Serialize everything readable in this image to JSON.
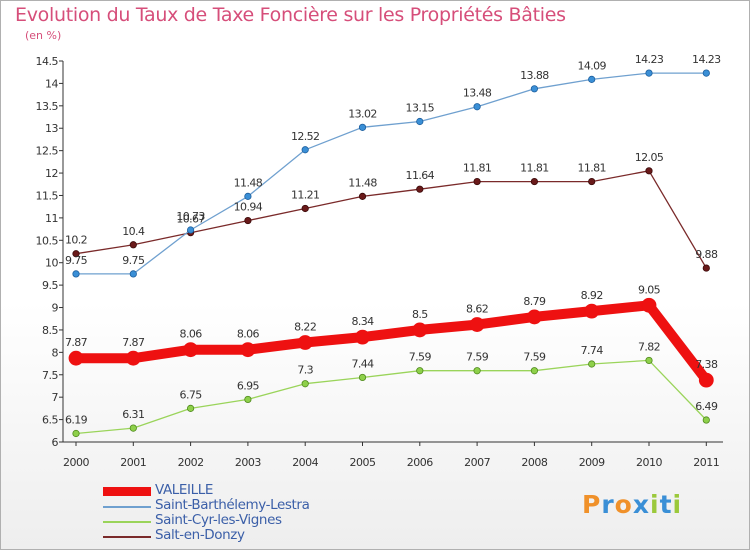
{
  "title": "Evolution du Taux de Taxe Foncière sur les Propriétés Bâties",
  "unit": "(en %)",
  "brand": {
    "letters": [
      "P",
      "r",
      "o",
      "x",
      "i",
      "t",
      "i"
    ],
    "colors": [
      "#f0912a",
      "#3a8fd6",
      "#f0912a",
      "#3a8fd6",
      "#9bc93b",
      "#3a8fd6",
      "#9bc93b"
    ]
  },
  "chart_data": {
    "type": "line",
    "x": [
      "2000",
      "2001",
      "2002",
      "2003",
      "2004",
      "2005",
      "2006",
      "2007",
      "2008",
      "2009",
      "2010",
      "2011"
    ],
    "y_ticks": [
      "6",
      "6.5",
      "7",
      "7.5",
      "8",
      "8.5",
      "9",
      "9.5",
      "10",
      "10.5",
      "11",
      "11.5",
      "12",
      "12.5",
      "13",
      "13.5",
      "14",
      "14.5"
    ],
    "ylim": [
      6,
      14.5
    ],
    "grid": false,
    "legend_position": "bottom-left",
    "series": [
      {
        "name": "VALEILLE",
        "color": "#ee1111",
        "values": [
          7.87,
          7.87,
          8.06,
          8.06,
          8.22,
          8.34,
          8.5,
          8.62,
          8.79,
          8.92,
          9.05,
          7.38
        ],
        "labels": [
          "7.87",
          "7.87",
          "8.06",
          "8.06",
          "8.22",
          "8.34",
          "8.5",
          "8.62",
          "8.79",
          "8.92",
          "9.05",
          "7.38"
        ]
      },
      {
        "name": "Saint-Barthélemy-Lestra",
        "color": "#6fa0cf",
        "values": [
          9.75,
          9.75,
          10.73,
          11.48,
          12.52,
          13.02,
          13.15,
          13.48,
          13.88,
          14.09,
          14.23,
          14.23
        ],
        "labels": [
          "9.75",
          "9.75",
          "10.73",
          "11.48",
          "12.52",
          "13.02",
          "13.15",
          "13.48",
          "13.88",
          "14.09",
          "14.23",
          "14.23"
        ]
      },
      {
        "name": "Saint-Cyr-les-Vignes",
        "color": "#9ad45a",
        "values": [
          6.19,
          6.31,
          6.75,
          6.95,
          7.3,
          7.44,
          7.59,
          7.59,
          7.59,
          7.74,
          7.82,
          6.49
        ],
        "labels": [
          "6.19",
          "6.31",
          "6.75",
          "6.95",
          "7.3",
          "7.44",
          "7.59",
          "7.59",
          "7.59",
          "7.74",
          "7.82",
          "6.49"
        ]
      },
      {
        "name": "Salt-en-Donzy",
        "color": "#7a2a2a",
        "values": [
          10.2,
          10.4,
          10.67,
          10.94,
          11.21,
          11.48,
          11.64,
          11.81,
          11.81,
          11.81,
          12.05,
          9.88
        ],
        "labels": [
          "10.2",
          "10.4",
          "10.67",
          "10.94",
          "11.21",
          "11.48",
          "11.64",
          "11.81",
          "11.81",
          "11.81",
          "12.05",
          "9.88"
        ]
      }
    ]
  }
}
